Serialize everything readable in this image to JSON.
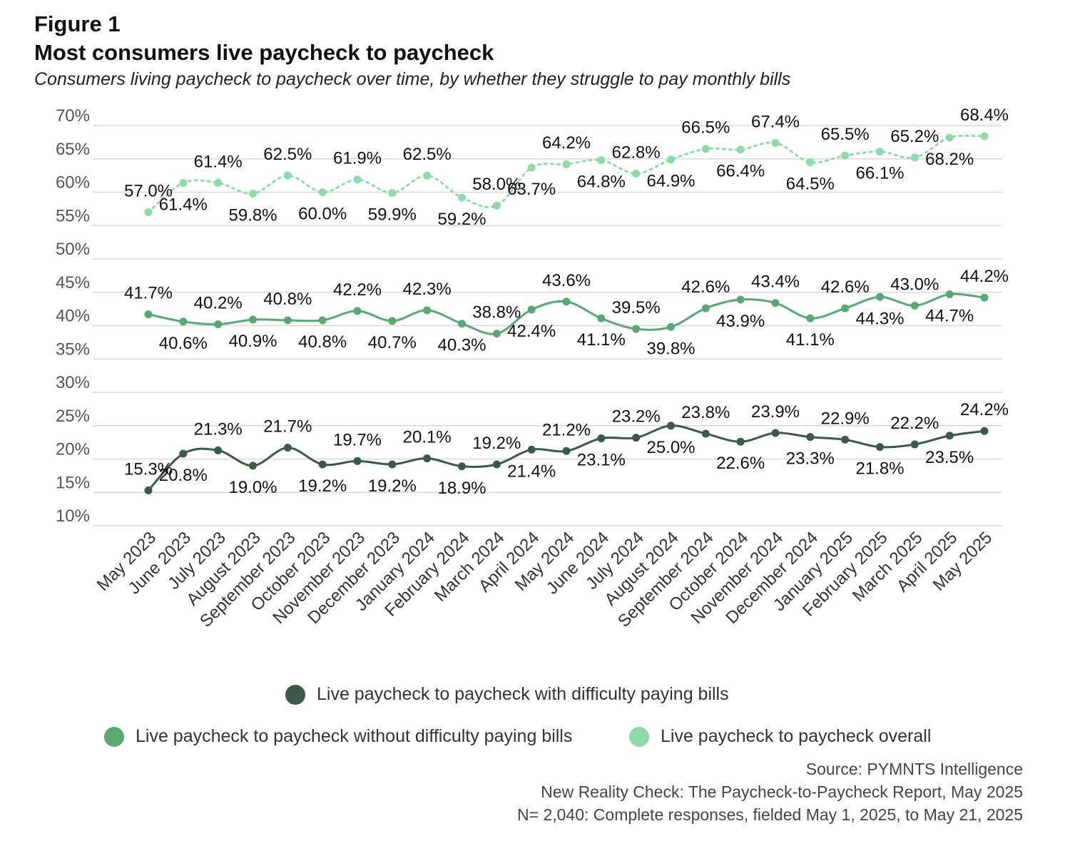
{
  "figure_label": "Figure 1",
  "title": "Most consumers live paycheck to paycheck",
  "subtitle": "Consumers living paycheck to paycheck over time, by whether they struggle to pay monthly bills",
  "legend": {
    "with_difficulty": "Live paycheck to paycheck with difficulty paying bills",
    "without_difficulty": "Live paycheck to paycheck without difficulty paying bills",
    "overall": "Live paycheck to paycheck overall"
  },
  "source": {
    "line1": "Source: PYMNTS Intelligence",
    "line2": "New Reality Check: The Paycheck-to-Paycheck Report, May 2025",
    "line3": "N= 2,040: Complete responses, fielded May 1, 2025, to May 21, 2025"
  },
  "colors": {
    "with_difficulty": "#3a5a45",
    "without_difficulty": "#5aa774",
    "overall": "#8fdba8",
    "grid": "#d9d9d9",
    "tick_text": "#555555"
  },
  "chart_data": {
    "type": "line",
    "categories": [
      "May 2023",
      "June 2023",
      "July 2023",
      "August 2023",
      "September 2023",
      "October 2023",
      "November 2023",
      "December 2023",
      "January 2024",
      "February 2024",
      "March 2024",
      "April 2024",
      "May 2024",
      "June 2024",
      "July 2024",
      "August 2024",
      "September 2024",
      "October 2024",
      "November 2024",
      "December 2024",
      "January 2025",
      "February 2025",
      "March 2025",
      "April 2025",
      "May 2025"
    ],
    "y_ticks": [
      "10%",
      "15%",
      "20%",
      "25%",
      "30%",
      "35%",
      "40%",
      "45%",
      "50%",
      "55%",
      "60%",
      "65%",
      "70%"
    ],
    "ylim": [
      10,
      70
    ],
    "grid": true,
    "legend_position": "bottom",
    "value_suffix": "%",
    "series": [
      {
        "key": "overall",
        "name": "Live paycheck to paycheck overall",
        "style": "dotted",
        "values": [
          57.0,
          61.4,
          61.4,
          59.8,
          62.5,
          60.0,
          61.9,
          59.9,
          62.5,
          59.2,
          58.0,
          63.7,
          64.2,
          64.8,
          62.8,
          64.9,
          66.5,
          66.4,
          67.4,
          64.5,
          65.5,
          66.1,
          65.2,
          68.2,
          68.4
        ]
      },
      {
        "key": "without_difficulty",
        "name": "Live paycheck to paycheck without difficulty paying bills",
        "style": "solid",
        "values": [
          41.7,
          40.6,
          40.2,
          40.9,
          40.8,
          40.8,
          42.2,
          40.7,
          42.3,
          40.3,
          38.8,
          42.4,
          43.6,
          41.1,
          39.5,
          39.8,
          42.6,
          43.9,
          43.4,
          41.1,
          42.6,
          44.3,
          43.0,
          44.7,
          44.2
        ]
      },
      {
        "key": "with_difficulty",
        "name": "Live paycheck to paycheck with difficulty paying bills",
        "style": "solid",
        "values": [
          15.3,
          20.8,
          21.3,
          19.0,
          21.7,
          19.2,
          19.7,
          19.2,
          20.1,
          18.9,
          19.2,
          21.4,
          21.2,
          23.1,
          23.2,
          25.0,
          23.8,
          22.6,
          23.9,
          23.3,
          22.9,
          21.8,
          22.2,
          23.5,
          24.2
        ]
      }
    ]
  }
}
